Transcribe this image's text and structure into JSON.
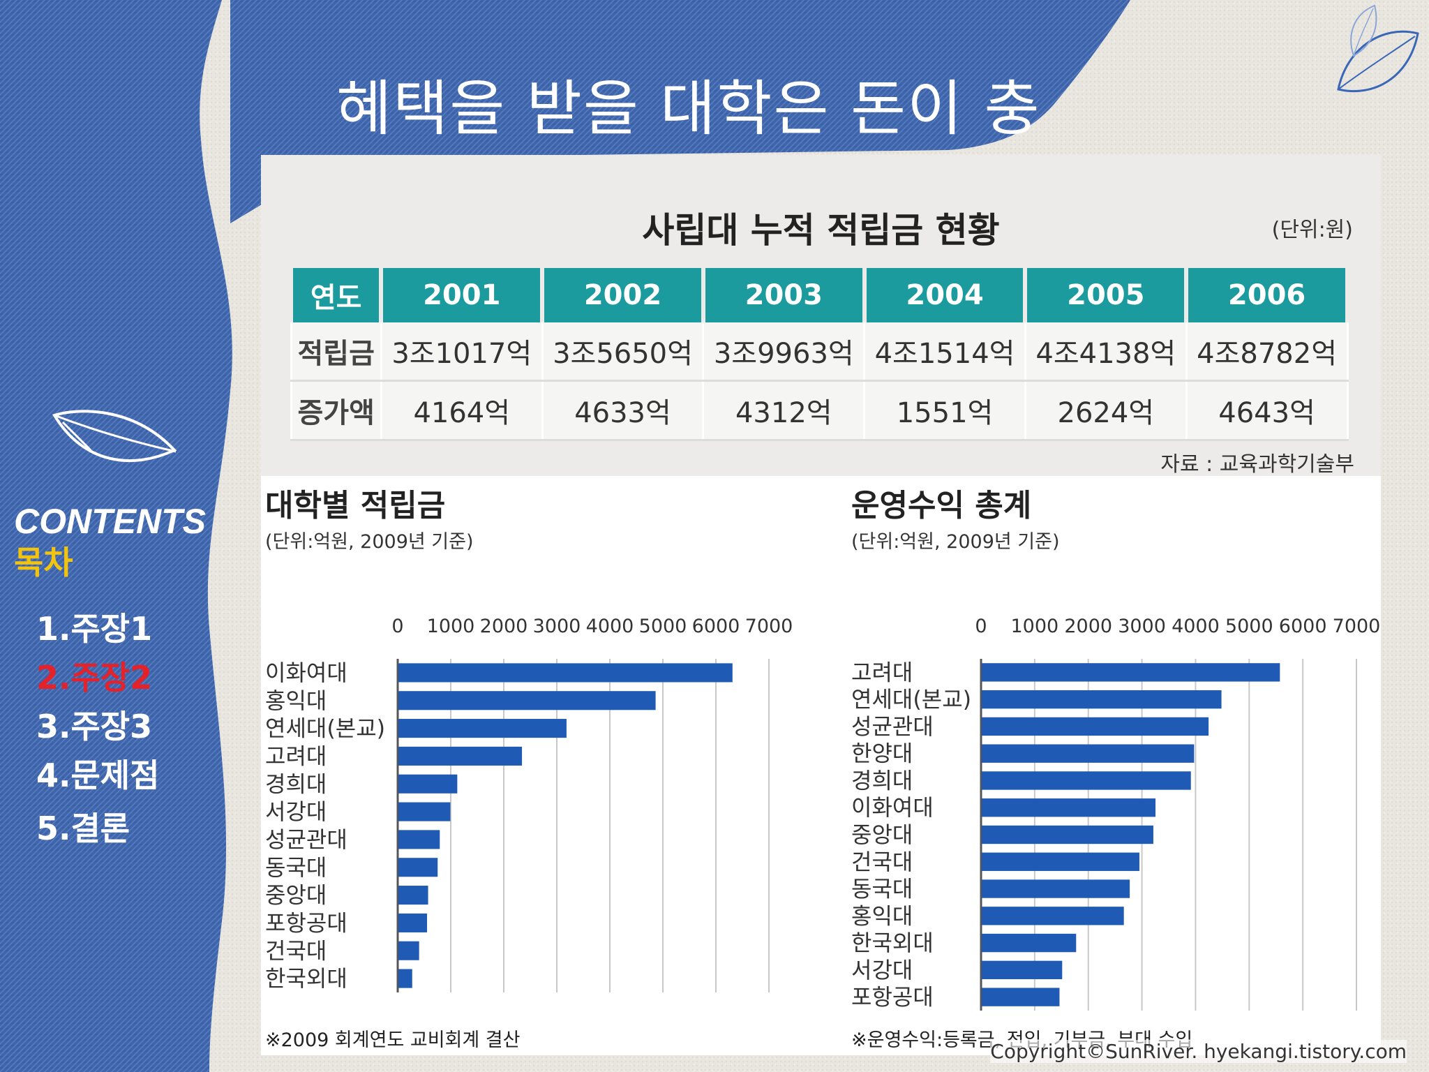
{
  "slide": {
    "title": "혜택을 받을 대학은 돈이 충분"
  },
  "sidebar": {
    "contents_label": "CONTENTS",
    "contents_label_kr": "목차",
    "items": [
      {
        "label": "1.주장1",
        "active": false
      },
      {
        "label": "2.주장2",
        "active": true
      },
      {
        "label": "3.주장3",
        "active": false
      },
      {
        "label": "4.문제점",
        "active": false
      },
      {
        "label": "5.결론",
        "active": false
      }
    ]
  },
  "table": {
    "title": "사립대 누적 적립금 현황",
    "unit": "(단위:원)",
    "headers": [
      "연도",
      "2001",
      "2002",
      "2003",
      "2004",
      "2005",
      "2006"
    ],
    "rows": [
      [
        "적립금",
        "3조1017억",
        "3조5650억",
        "3조9963억",
        "4조1514억",
        "4조4138억",
        "4조8782억"
      ],
      [
        "증가액",
        "4164억",
        "4633억",
        "4312억",
        "1551억",
        "2624억",
        "4643억"
      ]
    ],
    "source": "자료 : 교육과학기술부"
  },
  "chart_data": [
    {
      "type": "bar",
      "orientation": "horizontal",
      "title": "대학별 적립금",
      "subtitle": "(단위:억원, 2009년 기준)",
      "categories": [
        "이화여대",
        "홍익대",
        "연세대(본교)",
        "고려대",
        "경희대",
        "서강대",
        "성균관대",
        "동국대",
        "중앙대",
        "포항공대",
        "건국대",
        "한국외대"
      ],
      "values": [
        6300,
        4850,
        3170,
        2330,
        1110,
        980,
        780,
        740,
        560,
        540,
        390,
        260
      ],
      "xlim": [
        0,
        7000
      ],
      "ticks": [
        0,
        1000,
        2000,
        3000,
        4000,
        5000,
        6000,
        7000
      ],
      "grid": true,
      "color": "#1f5bb5",
      "footnote": "※2009 회계연도 교비회계 결산"
    },
    {
      "type": "bar",
      "orientation": "horizontal",
      "title": "운영수익 총계",
      "subtitle": "(단위:억원, 2009년 기준)",
      "categories": [
        "고려대",
        "연세대(본교)",
        "성균관대",
        "한양대",
        "경희대",
        "이화여대",
        "중앙대",
        "건국대",
        "동국대",
        "홍익대",
        "한국외대",
        "서강대",
        "포항공대"
      ],
      "values": [
        5560,
        4470,
        4230,
        3960,
        3900,
        3240,
        3200,
        2940,
        2760,
        2650,
        1760,
        1500,
        1450
      ],
      "xlim": [
        0,
        7000
      ],
      "ticks": [
        0,
        1000,
        2000,
        3000,
        4000,
        5000,
        6000,
        7000
      ],
      "grid": true,
      "color": "#1f5bb5",
      "footnote": "※운영수익:등록금, 전입, 기부금, 부대 수입"
    }
  ],
  "footer": {
    "copyright": "Copyright©SunRiver. hyekangi.tistory.com"
  },
  "colors": {
    "denim": "#3a63a8",
    "teal_header": "#1b9b9e",
    "bar": "#1f5bb5",
    "active_item": "#e5212a",
    "contents_kr": "#f2c30f"
  }
}
